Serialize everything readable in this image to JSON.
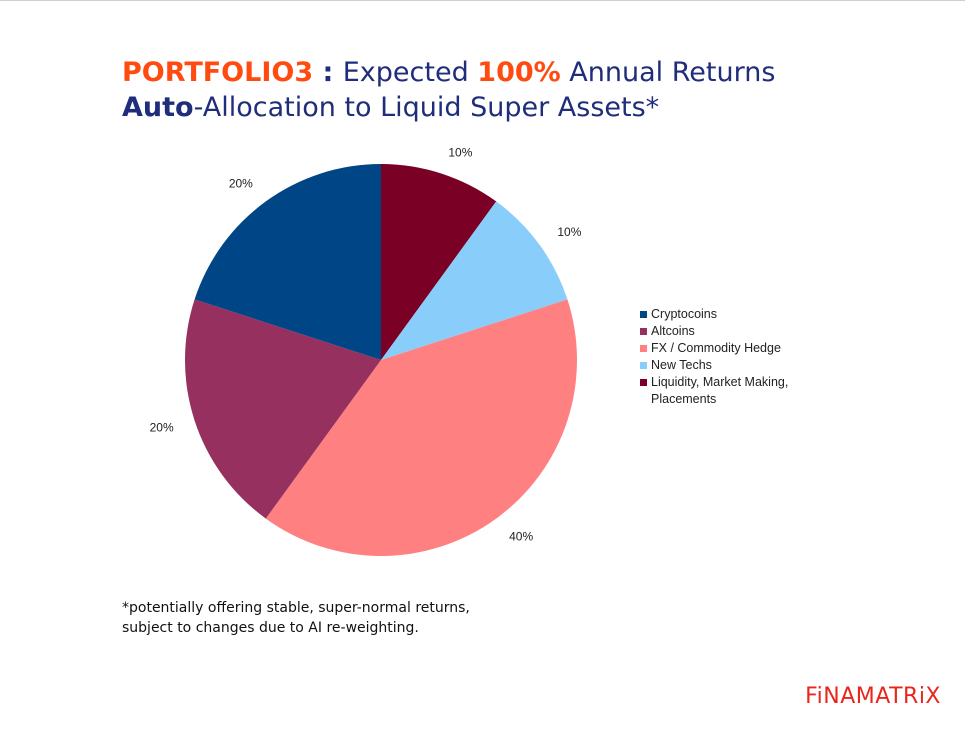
{
  "title": {
    "line1": {
      "portfolio": "PORTFOLIO3",
      "colon": " : ",
      "expected": "Expected ",
      "percent": "100%",
      "rest": " Annual Returns"
    },
    "line2": {
      "auto": "Auto",
      "rest": "-Allocation to Liquid Super Assets*"
    }
  },
  "chart_data": {
    "type": "pie",
    "title": "",
    "start_angle_deg": 0,
    "direction": "clockwise",
    "legend_position": "right",
    "slices": [
      {
        "name": "Liquidity, Market Making, Placements",
        "value": 10,
        "label": "10%",
        "color": "#7a0026"
      },
      {
        "name": "New Techs",
        "value": 10,
        "label": "10%",
        "color": "#89cdfb"
      },
      {
        "name": "FX / Commodity Hedge",
        "value": 40,
        "label": "40%",
        "color": "#ff8080"
      },
      {
        "name": "Altcoins",
        "value": 20,
        "label": "20%",
        "color": "#96305f"
      },
      {
        "name": "Cryptocoins",
        "value": 20,
        "label": "20%",
        "color": "#004586"
      }
    ],
    "legend": [
      {
        "name": "Cryptocoins",
        "color": "#004586"
      },
      {
        "name": "Altcoins",
        "color": "#96305f"
      },
      {
        "name": "FX / Commodity Hedge",
        "color": "#ff8080"
      },
      {
        "name": "New Techs",
        "color": "#89cdfb"
      },
      {
        "name": "Liquidity, Market Making, Placements",
        "color": "#7a0026"
      }
    ]
  },
  "footnote": {
    "line1": "*potentially offering stable, super-normal returns,",
    "line2": "subject to changes due to AI re-weighting."
  },
  "brand": "FiNAMATRiX"
}
